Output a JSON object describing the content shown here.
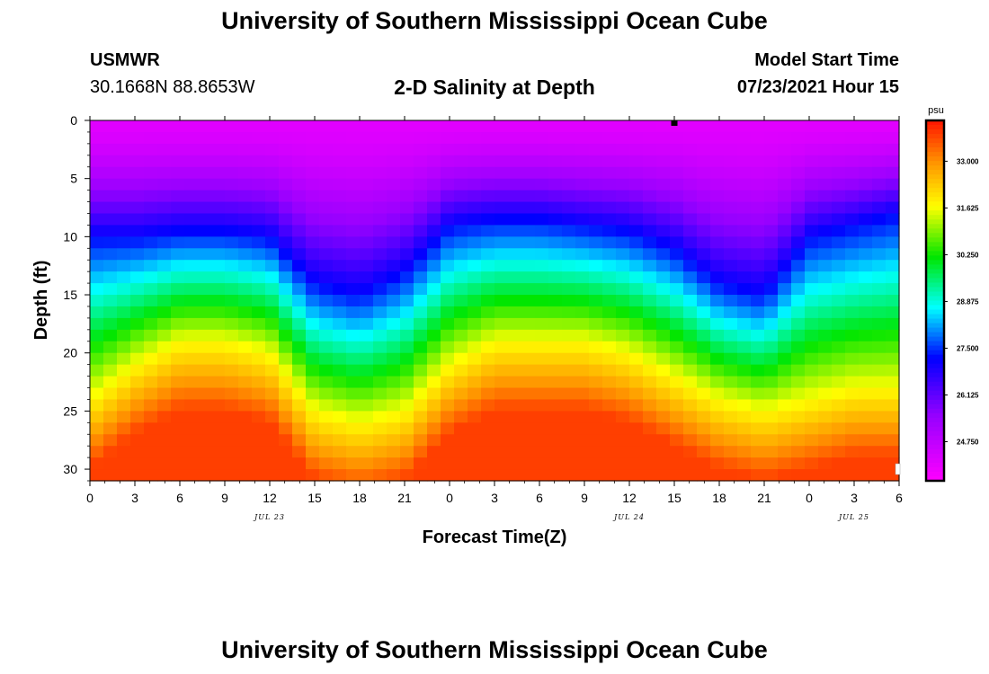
{
  "page": {
    "title_top": "University of Southern Mississippi Ocean Cube",
    "title_bottom": "University of Southern Mississippi Ocean Cube",
    "station": "USMWR",
    "coords": "30.1668N  88.8653W",
    "plot_title": "2-D Salinity at Depth",
    "model_label": "Model Start Time",
    "model_time": "07/23/2021 Hour 15"
  },
  "chart_data": {
    "type": "heatmap",
    "title": "2-D Salinity at Depth",
    "xlabel": "Forecast Time(Z)",
    "ylabel": "Depth (ft)",
    "x_ticks": [
      0,
      3,
      6,
      9,
      12,
      15,
      18,
      21,
      24,
      27,
      30,
      33,
      36,
      39,
      42,
      45,
      48,
      51,
      54
    ],
    "x_tick_labels": [
      "0",
      "3",
      "6",
      "9",
      "12",
      "15",
      "18",
      "21",
      "0",
      "3",
      "6",
      "9",
      "12",
      "15",
      "18",
      "21",
      "0",
      "3",
      "6"
    ],
    "xlim": [
      0,
      54
    ],
    "y_ticks": [
      0,
      5,
      10,
      15,
      20,
      25,
      30
    ],
    "ylim": [
      0,
      31
    ],
    "date_labels": [
      {
        "text": "JUL 23",
        "x": 12
      },
      {
        "text": "JUL 24",
        "x": 36
      },
      {
        "text": "JUL 25",
        "x": 51
      }
    ],
    "colorbar": {
      "unit": "psu",
      "ticks": [
        "33.000",
        "31.625",
        "30.250",
        "28.875",
        "27.500",
        "26.125",
        "24.750"
      ],
      "range": [
        23.6,
        34.2
      ]
    },
    "marker_time": 39,
    "surface_depth_contours": {
      "time": [
        0,
        3,
        6,
        9,
        12,
        15,
        18,
        21,
        24,
        27,
        30,
        33,
        36,
        39,
        42,
        45,
        48,
        51,
        54
      ],
      "depth_of_27_5psu": [
        10,
        10,
        9.5,
        9.5,
        10,
        14,
        15,
        13,
        9,
        8.5,
        8.5,
        9,
        9.5,
        11,
        14,
        15,
        10,
        9,
        8
      ],
      "depth_of_32psu": [
        24,
        21,
        19,
        19,
        20,
        25,
        26,
        25,
        21,
        19,
        19,
        19,
        20,
        22,
        24,
        25,
        24,
        23,
        23
      ]
    }
  }
}
